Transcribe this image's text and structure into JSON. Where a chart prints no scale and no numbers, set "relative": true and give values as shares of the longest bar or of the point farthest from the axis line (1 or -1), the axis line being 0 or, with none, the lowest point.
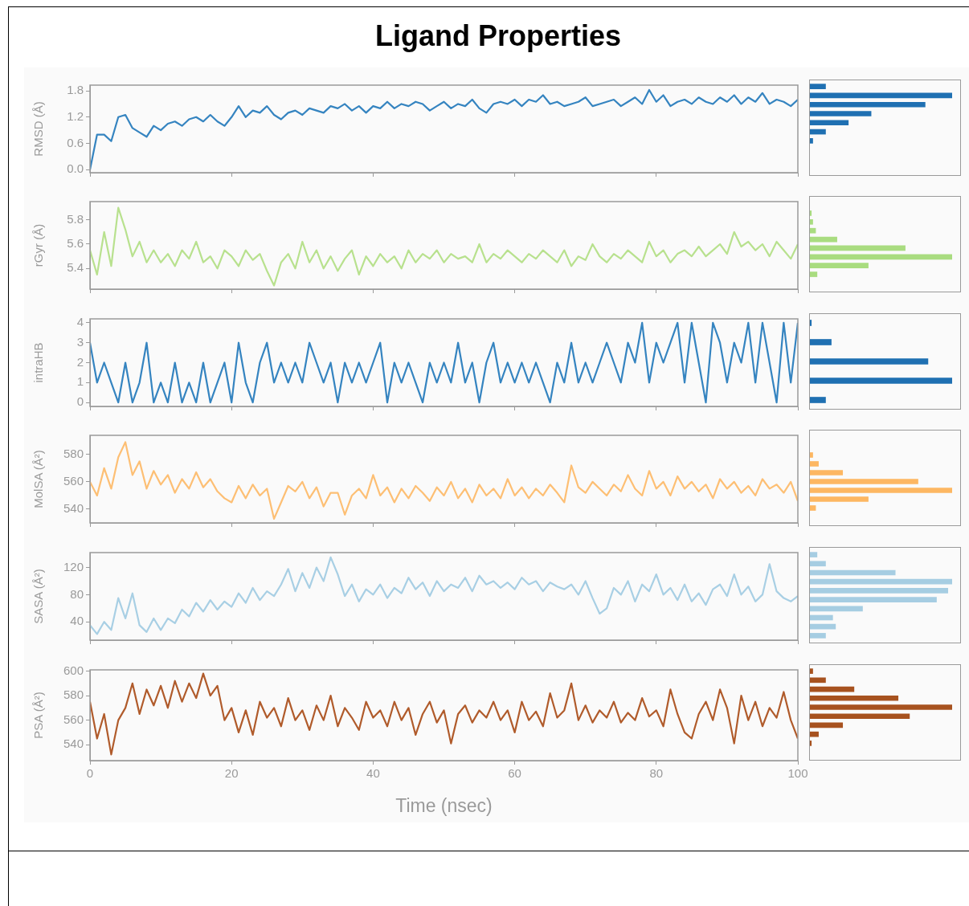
{
  "chart_data": [
    {
      "type": "line",
      "title": "Ligand Properties",
      "ylabel": "RMSD (Å)",
      "xlim": [
        0,
        100
      ],
      "xticks": [
        0,
        20,
        40,
        60,
        80,
        100
      ],
      "ylim": [
        -0.07,
        1.93
      ],
      "yticks": [
        {
          "value": 0,
          "label": "0.0"
        },
        0.6,
        1.2,
        1.8
      ],
      "tick_labels": "y",
      "x": [
        0,
        1,
        2,
        3,
        4,
        5,
        6,
        7,
        8,
        9,
        10,
        11,
        12,
        13,
        14,
        15,
        16,
        17,
        18,
        19,
        20,
        21,
        22,
        23,
        24,
        25,
        26,
        27,
        28,
        29,
        30,
        31,
        32,
        33,
        34,
        35,
        36,
        37,
        38,
        39,
        40,
        41,
        42,
        43,
        44,
        45,
        46,
        47,
        48,
        49,
        50,
        51,
        52,
        53,
        54,
        55,
        56,
        57,
        58,
        59,
        60,
        61,
        62,
        63,
        64,
        65,
        66,
        67,
        68,
        69,
        70,
        71,
        72,
        73,
        74,
        75,
        76,
        77,
        78,
        79,
        80,
        81,
        82,
        83,
        84,
        85,
        86,
        87,
        88,
        89,
        90,
        91,
        92,
        93,
        94,
        95,
        96,
        97,
        98,
        99,
        100
      ],
      "series": [
        {
          "color": "#3584c0",
          "values": [
            0,
            0.8,
            0.8,
            0.65,
            1.2,
            1.25,
            0.95,
            0.85,
            0.75,
            1.0,
            0.9,
            1.05,
            1.1,
            1.0,
            1.15,
            1.2,
            1.1,
            1.25,
            1.1,
            1.0,
            1.2,
            1.45,
            1.2,
            1.35,
            1.3,
            1.45,
            1.25,
            1.15,
            1.3,
            1.35,
            1.25,
            1.4,
            1.35,
            1.3,
            1.45,
            1.4,
            1.5,
            1.35,
            1.45,
            1.3,
            1.45,
            1.4,
            1.55,
            1.4,
            1.5,
            1.45,
            1.55,
            1.5,
            1.35,
            1.45,
            1.55,
            1.4,
            1.5,
            1.45,
            1.6,
            1.4,
            1.3,
            1.5,
            1.55,
            1.5,
            1.6,
            1.45,
            1.6,
            1.55,
            1.7,
            1.5,
            1.55,
            1.45,
            1.5,
            1.55,
            1.65,
            1.45,
            1.5,
            1.55,
            1.6,
            1.45,
            1.55,
            1.65,
            1.5,
            1.82,
            1.55,
            1.7,
            1.45,
            1.55,
            1.6,
            1.5,
            1.65,
            1.55,
            1.5,
            1.65,
            1.55,
            1.7,
            1.5,
            1.65,
            1.55,
            1.75,
            1.5,
            1.6,
            1.55,
            1.45,
            1.6
          ]
        }
      ]
    },
    {
      "type": "bar",
      "orientation": "horizontal",
      "relative": true,
      "color": "#1f70b2",
      "categories": [
        null,
        null,
        null,
        null,
        null,
        null,
        null
      ],
      "values": [
        0.11,
        1,
        0.81,
        0.43,
        0.27,
        0.11,
        0.02
      ]
    },
    {
      "type": "line",
      "ylabel": "rGyr (Å)",
      "xlim": [
        0,
        100
      ],
      "xticks": [
        0,
        20,
        40,
        60,
        80,
        100
      ],
      "ylim": [
        5.23,
        5.95
      ],
      "yticks": [
        5.4,
        5.6,
        5.8
      ],
      "tick_labels": "y",
      "x": [
        0,
        1,
        2,
        3,
        4,
        5,
        6,
        7,
        8,
        9,
        10,
        11,
        12,
        13,
        14,
        15,
        16,
        17,
        18,
        19,
        20,
        21,
        22,
        23,
        24,
        25,
        26,
        27,
        28,
        29,
        30,
        31,
        32,
        33,
        34,
        35,
        36,
        37,
        38,
        39,
        40,
        41,
        42,
        43,
        44,
        45,
        46,
        47,
        48,
        49,
        50,
        51,
        52,
        53,
        54,
        55,
        56,
        57,
        58,
        59,
        60,
        61,
        62,
        63,
        64,
        65,
        66,
        67,
        68,
        69,
        70,
        71,
        72,
        73,
        74,
        75,
        76,
        77,
        78,
        79,
        80,
        81,
        82,
        83,
        84,
        85,
        86,
        87,
        88,
        89,
        90,
        91,
        92,
        93,
        94,
        95,
        96,
        97,
        98,
        99,
        100
      ],
      "series": [
        {
          "color": "#b8e18e",
          "values": [
            5.55,
            5.35,
            5.7,
            5.42,
            5.9,
            5.72,
            5.5,
            5.62,
            5.45,
            5.55,
            5.45,
            5.52,
            5.42,
            5.55,
            5.48,
            5.62,
            5.45,
            5.5,
            5.4,
            5.55,
            5.5,
            5.42,
            5.55,
            5.47,
            5.52,
            5.38,
            5.26,
            5.45,
            5.52,
            5.4,
            5.62,
            5.45,
            5.55,
            5.4,
            5.5,
            5.38,
            5.48,
            5.55,
            5.35,
            5.5,
            5.42,
            5.52,
            5.45,
            5.5,
            5.4,
            5.55,
            5.45,
            5.52,
            5.48,
            5.55,
            5.45,
            5.52,
            5.48,
            5.5,
            5.45,
            5.6,
            5.45,
            5.52,
            5.48,
            5.55,
            5.5,
            5.45,
            5.52,
            5.48,
            5.55,
            5.5,
            5.45,
            5.55,
            5.42,
            5.5,
            5.47,
            5.6,
            5.5,
            5.45,
            5.52,
            5.48,
            5.55,
            5.5,
            5.45,
            5.62,
            5.5,
            5.55,
            5.45,
            5.52,
            5.55,
            5.5,
            5.58,
            5.5,
            5.55,
            5.6,
            5.52,
            5.7,
            5.58,
            5.62,
            5.55,
            5.6,
            5.5,
            5.62,
            5.55,
            5.48,
            5.6
          ]
        }
      ]
    },
    {
      "type": "bar",
      "orientation": "horizontal",
      "relative": true,
      "color": "#a9dc80",
      "categories": [
        null,
        null,
        null,
        null,
        null,
        null,
        null,
        null
      ],
      "values": [
        0.01,
        0.02,
        0.04,
        0.19,
        0.67,
        1,
        0.41,
        0.05
      ]
    },
    {
      "type": "line",
      "ylabel": "intraHB",
      "xlim": [
        0,
        100
      ],
      "xticks": [
        0,
        20,
        40,
        60,
        80,
        100
      ],
      "ylim": [
        -0.2,
        4.2
      ],
      "yticks": [
        0,
        1,
        2,
        3,
        4
      ],
      "tick_labels": "y",
      "x": [
        0,
        1,
        2,
        3,
        4,
        5,
        6,
        7,
        8,
        9,
        10,
        11,
        12,
        13,
        14,
        15,
        16,
        17,
        18,
        19,
        20,
        21,
        22,
        23,
        24,
        25,
        26,
        27,
        28,
        29,
        30,
        31,
        32,
        33,
        34,
        35,
        36,
        37,
        38,
        39,
        40,
        41,
        42,
        43,
        44,
        45,
        46,
        47,
        48,
        49,
        50,
        51,
        52,
        53,
        54,
        55,
        56,
        57,
        58,
        59,
        60,
        61,
        62,
        63,
        64,
        65,
        66,
        67,
        68,
        69,
        70,
        71,
        72,
        73,
        74,
        75,
        76,
        77,
        78,
        79,
        80,
        81,
        82,
        83,
        84,
        85,
        86,
        87,
        88,
        89,
        90,
        91,
        92,
        93,
        94,
        95,
        96,
        97,
        98,
        99,
        100
      ],
      "series": [
        {
          "color": "#3584c0",
          "values": [
            3,
            1,
            2,
            1,
            0,
            2,
            0,
            1,
            3,
            0,
            1,
            0,
            2,
            0,
            1,
            0,
            2,
            0,
            1,
            2,
            0,
            3,
            1,
            0,
            2,
            3,
            1,
            2,
            1,
            2,
            1,
            3,
            2,
            1,
            2,
            0,
            2,
            1,
            2,
            1,
            2,
            3,
            0,
            2,
            1,
            2,
            1,
            0,
            2,
            1,
            2,
            1,
            3,
            1,
            2,
            0,
            2,
            3,
            1,
            2,
            1,
            2,
            1,
            2,
            1,
            0,
            2,
            1,
            3,
            1,
            2,
            1,
            2,
            3,
            2,
            1,
            3,
            2,
            4,
            1,
            3,
            2,
            3,
            4,
            1,
            4,
            2,
            0,
            4,
            3,
            1,
            3,
            2,
            4,
            1,
            4,
            2,
            0,
            4,
            1,
            4
          ]
        }
      ]
    },
    {
      "type": "bar",
      "orientation": "horizontal",
      "relative": true,
      "color": "#1f70b2",
      "categories": [
        null,
        null,
        null,
        null,
        null
      ],
      "values": [
        0.01,
        0.15,
        0.83,
        1,
        0.11
      ]
    },
    {
      "type": "line",
      "ylabel": "MolSA (Å²)",
      "xlim": [
        0,
        100
      ],
      "xticks": [
        0,
        20,
        40,
        60,
        80,
        100
      ],
      "ylim": [
        530,
        594
      ],
      "yticks": [
        540,
        560,
        580
      ],
      "tick_labels": "y",
      "x": [
        0,
        1,
        2,
        3,
        4,
        5,
        6,
        7,
        8,
        9,
        10,
        11,
        12,
        13,
        14,
        15,
        16,
        17,
        18,
        19,
        20,
        21,
        22,
        23,
        24,
        25,
        26,
        27,
        28,
        29,
        30,
        31,
        32,
        33,
        34,
        35,
        36,
        37,
        38,
        39,
        40,
        41,
        42,
        43,
        44,
        45,
        46,
        47,
        48,
        49,
        50,
        51,
        52,
        53,
        54,
        55,
        56,
        57,
        58,
        59,
        60,
        61,
        62,
        63,
        64,
        65,
        66,
        67,
        68,
        69,
        70,
        71,
        72,
        73,
        74,
        75,
        76,
        77,
        78,
        79,
        80,
        81,
        82,
        83,
        84,
        85,
        86,
        87,
        88,
        89,
        90,
        91,
        92,
        93,
        94,
        95,
        96,
        97,
        98,
        99,
        100
      ],
      "series": [
        {
          "color": "#fdbf74",
          "values": [
            560,
            550,
            570,
            555,
            578,
            589,
            565,
            575,
            555,
            568,
            558,
            565,
            552,
            562,
            555,
            567,
            556,
            562,
            553,
            548,
            545,
            557,
            548,
            558,
            550,
            555,
            533,
            545,
            557,
            553,
            560,
            548,
            556,
            542,
            552,
            552,
            536,
            550,
            555,
            548,
            565,
            550,
            556,
            545,
            555,
            548,
            557,
            552,
            546,
            556,
            550,
            560,
            548,
            555,
            545,
            558,
            550,
            555,
            548,
            562,
            550,
            556,
            548,
            555,
            550,
            558,
            552,
            545,
            572,
            556,
            552,
            560,
            555,
            550,
            558,
            553,
            565,
            555,
            550,
            568,
            555,
            560,
            550,
            564,
            555,
            560,
            553,
            558,
            548,
            562,
            555,
            560,
            552,
            557,
            550,
            562,
            555,
            558,
            552,
            560,
            546
          ]
        }
      ]
    },
    {
      "type": "bar",
      "orientation": "horizontal",
      "relative": true,
      "color": "#fdb762",
      "categories": [
        null,
        null,
        null,
        null,
        null,
        null,
        null
      ],
      "values": [
        0.02,
        0.06,
        0.23,
        0.76,
        1,
        0.41,
        0.04
      ]
    },
    {
      "type": "line",
      "ylabel": "SASA (Å²)",
      "xlim": [
        0,
        100
      ],
      "xticks": [
        0,
        20,
        40,
        60,
        80,
        100
      ],
      "ylim": [
        13,
        142
      ],
      "yticks": [
        40,
        80,
        120
      ],
      "tick_labels": "y",
      "x": [
        0,
        1,
        2,
        3,
        4,
        5,
        6,
        7,
        8,
        9,
        10,
        11,
        12,
        13,
        14,
        15,
        16,
        17,
        18,
        19,
        20,
        21,
        22,
        23,
        24,
        25,
        26,
        27,
        28,
        29,
        30,
        31,
        32,
        33,
        34,
        35,
        36,
        37,
        38,
        39,
        40,
        41,
        42,
        43,
        44,
        45,
        46,
        47,
        48,
        49,
        50,
        51,
        52,
        53,
        54,
        55,
        56,
        57,
        58,
        59,
        60,
        61,
        62,
        63,
        64,
        65,
        66,
        67,
        68,
        69,
        70,
        71,
        72,
        73,
        74,
        75,
        76,
        77,
        78,
        79,
        80,
        81,
        82,
        83,
        84,
        85,
        86,
        87,
        88,
        89,
        90,
        91,
        92,
        93,
        94,
        95,
        96,
        97,
        98,
        99,
        100
      ],
      "series": [
        {
          "color": "#a8cfe4",
          "values": [
            35,
            22,
            40,
            28,
            75,
            45,
            82,
            35,
            25,
            45,
            28,
            45,
            38,
            58,
            48,
            68,
            55,
            72,
            58,
            70,
            62,
            82,
            68,
            90,
            72,
            85,
            78,
            95,
            118,
            85,
            112,
            90,
            120,
            100,
            135,
            110,
            78,
            95,
            70,
            88,
            80,
            95,
            75,
            90,
            82,
            105,
            88,
            98,
            78,
            100,
            85,
            95,
            90,
            105,
            85,
            108,
            95,
            100,
            90,
            98,
            88,
            105,
            95,
            100,
            85,
            98,
            92,
            88,
            95,
            80,
            100,
            75,
            52,
            60,
            90,
            80,
            100,
            70,
            95,
            85,
            110,
            80,
            90,
            72,
            95,
            70,
            82,
            65,
            88,
            95,
            78,
            110,
            80,
            92,
            70,
            80,
            125,
            85,
            75,
            70,
            78
          ]
        }
      ]
    },
    {
      "type": "bar",
      "orientation": "horizontal",
      "relative": true,
      "color": "#a6cde2",
      "categories": [
        null,
        null,
        null,
        null,
        null,
        null,
        null,
        null,
        null,
        null
      ],
      "values": [
        0.05,
        0.11,
        0.6,
        1,
        0.97,
        0.89,
        0.37,
        0.16,
        0.18,
        0.11
      ]
    },
    {
      "type": "line",
      "ylabel": "PSA (Å²)",
      "xlabel": "Time (nsec)",
      "xlim": [
        0,
        100
      ],
      "xticks": [
        0,
        20,
        40,
        60,
        80,
        100
      ],
      "ylim": [
        527,
        601
      ],
      "yticks": [
        540,
        560,
        580,
        600
      ],
      "x": [
        0,
        1,
        2,
        3,
        4,
        5,
        6,
        7,
        8,
        9,
        10,
        11,
        12,
        13,
        14,
        15,
        16,
        17,
        18,
        19,
        20,
        21,
        22,
        23,
        24,
        25,
        26,
        27,
        28,
        29,
        30,
        31,
        32,
        33,
        34,
        35,
        36,
        37,
        38,
        39,
        40,
        41,
        42,
        43,
        44,
        45,
        46,
        47,
        48,
        49,
        50,
        51,
        52,
        53,
        54,
        55,
        56,
        57,
        58,
        59,
        60,
        61,
        62,
        63,
        64,
        65,
        66,
        67,
        68,
        69,
        70,
        71,
        72,
        73,
        74,
        75,
        76,
        77,
        78,
        79,
        80,
        81,
        82,
        83,
        84,
        85,
        86,
        87,
        88,
        89,
        90,
        91,
        92,
        93,
        94,
        95,
        96,
        97,
        98,
        99,
        100
      ],
      "series": [
        {
          "color": "#b05b2b",
          "values": [
            575,
            545,
            565,
            532,
            560,
            570,
            590,
            565,
            585,
            572,
            588,
            570,
            592,
            575,
            590,
            578,
            598,
            580,
            588,
            560,
            570,
            550,
            568,
            548,
            575,
            562,
            570,
            555,
            578,
            560,
            568,
            552,
            572,
            560,
            580,
            555,
            570,
            562,
            552,
            575,
            562,
            568,
            555,
            575,
            560,
            570,
            548,
            565,
            575,
            558,
            568,
            541,
            565,
            572,
            558,
            568,
            562,
            575,
            560,
            568,
            550,
            575,
            560,
            567,
            555,
            582,
            562,
            568,
            590,
            560,
            572,
            558,
            568,
            562,
            575,
            558,
            566,
            560,
            578,
            563,
            568,
            555,
            585,
            565,
            550,
            545,
            565,
            575,
            560,
            585,
            570,
            541,
            580,
            560,
            575,
            555,
            570,
            562,
            583,
            560,
            545
          ]
        }
      ]
    },
    {
      "type": "bar",
      "orientation": "horizontal",
      "relative": true,
      "color": "#a7521f",
      "categories": [
        null,
        null,
        null,
        null,
        null,
        null,
        null,
        null,
        null
      ],
      "values": [
        0.02,
        0.11,
        0.31,
        0.62,
        1,
        0.7,
        0.23,
        0.06,
        0.01
      ]
    }
  ]
}
